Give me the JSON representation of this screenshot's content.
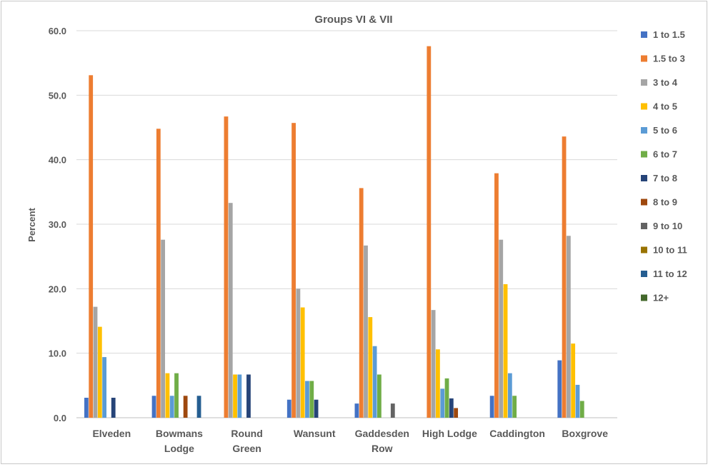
{
  "chart_data": {
    "type": "bar",
    "title": "Groups VI & VII",
    "xlabel": "",
    "ylabel": "Percent",
    "ylim": [
      0,
      60
    ],
    "yticks": [
      "0.0",
      "10.0",
      "20.0",
      "30.0",
      "40.0",
      "50.0",
      "60.0"
    ],
    "grid": true,
    "legend_position": "right",
    "categories": [
      [
        "Elveden"
      ],
      [
        "Bowmans",
        "Lodge"
      ],
      [
        "Round",
        "Green"
      ],
      [
        "Wansunt"
      ],
      [
        "Gaddesden",
        "Row"
      ],
      [
        "High Lodge"
      ],
      [
        "Caddington"
      ],
      [
        "Boxgrove"
      ]
    ],
    "series": [
      {
        "name": "1 to 1.5",
        "color": "#4472c4",
        "values": [
          3.1,
          3.4,
          0,
          2.8,
          2.2,
          0,
          3.4,
          8.9
        ]
      },
      {
        "name": "1.5 to 3",
        "color": "#ed7d31",
        "values": [
          53.1,
          44.8,
          46.7,
          45.7,
          35.6,
          57.6,
          37.9,
          43.6
        ]
      },
      {
        "name": "3 to 4",
        "color": "#a5a5a5",
        "values": [
          17.2,
          27.6,
          33.3,
          20.0,
          26.7,
          16.7,
          27.6,
          28.2
        ]
      },
      {
        "name": "4 to 5",
        "color": "#ffc000",
        "values": [
          14.1,
          6.9,
          6.7,
          17.1,
          15.6,
          10.6,
          20.7,
          11.5
        ]
      },
      {
        "name": "5 to 6",
        "color": "#5b9bd5",
        "values": [
          9.4,
          3.4,
          6.7,
          5.7,
          11.1,
          4.5,
          6.9,
          5.1
        ]
      },
      {
        "name": "6 to 7",
        "color": "#70ad47",
        "values": [
          0,
          6.9,
          0,
          5.7,
          6.7,
          6.1,
          3.4,
          2.6
        ]
      },
      {
        "name": "7 to 8",
        "color": "#264478",
        "values": [
          3.1,
          0,
          6.7,
          2.8,
          0,
          3.0,
          0,
          0
        ]
      },
      {
        "name": "8 to 9",
        "color": "#9e480e",
        "values": [
          0,
          3.4,
          0,
          0,
          0,
          1.5,
          0,
          0
        ]
      },
      {
        "name": "9 to 10",
        "color": "#636363",
        "values": [
          0,
          0,
          0,
          0,
          2.2,
          0,
          0,
          0
        ]
      },
      {
        "name": "10 to 11",
        "color": "#997300",
        "values": [
          0,
          0,
          0,
          0,
          0,
          0,
          0,
          0
        ]
      },
      {
        "name": "11 to 12",
        "color": "#255e91",
        "values": [
          0,
          3.4,
          0,
          0,
          0,
          0,
          0,
          0
        ]
      },
      {
        "name": "12+",
        "color": "#43682b",
        "values": [
          0,
          0,
          0,
          0,
          0,
          0,
          0,
          0
        ]
      }
    ]
  }
}
